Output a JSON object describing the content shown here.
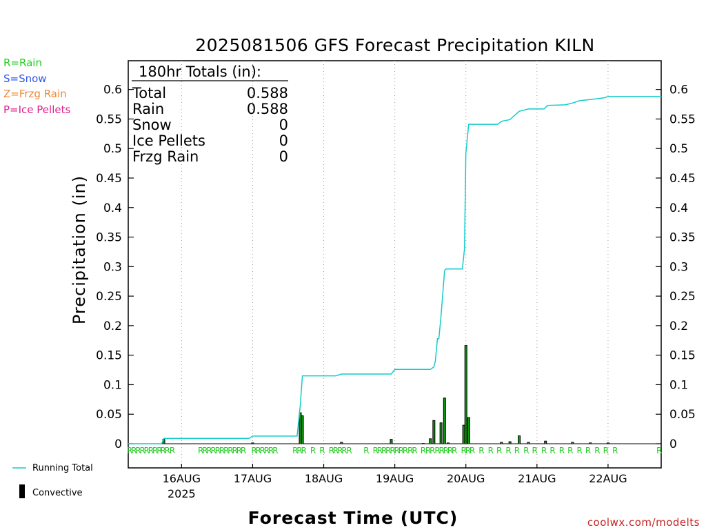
{
  "colors": {
    "rain": "#22cc22",
    "snow": "#3355ee",
    "frzg": "#ee8833",
    "ice": "#dd2288",
    "running_total": "#11cccc",
    "convective": "#000000",
    "credit": "#cc2222"
  },
  "chart_data": {
    "type": "bar",
    "title": "2025081506 GFS Forecast Precipitation KILN",
    "xlabel": "Forecast Time (UTC)",
    "ylabel": "Precipitation (in)",
    "ylim": [
      -0.0,
      0.65
    ],
    "x_units": "days since 15AUG2025 00Z",
    "xlim": [
      0.25,
      7.75
    ],
    "y_ticks": [
      {
        "value": 0,
        "label": "0"
      },
      {
        "value": 0.05,
        "label": "0.05"
      },
      {
        "value": 0.1,
        "label": "0.1"
      },
      {
        "value": 0.15,
        "label": "0.15"
      },
      {
        "value": 0.2,
        "label": "0.2"
      },
      {
        "value": 0.25,
        "label": "0.25"
      },
      {
        "value": 0.3,
        "label": "0.3"
      },
      {
        "value": 0.35,
        "label": "0.35"
      },
      {
        "value": 0.4,
        "label": "0.4"
      },
      {
        "value": 0.45,
        "label": "0.45"
      },
      {
        "value": 0.5,
        "label": "0.5"
      },
      {
        "value": 0.55,
        "label": "0.55"
      },
      {
        "value": 0.6,
        "label": "0.6"
      }
    ],
    "x_ticks": [
      {
        "value": 1,
        "label": "16AUG",
        "sublabel": "2025"
      },
      {
        "value": 2,
        "label": "17AUG",
        "sublabel": ""
      },
      {
        "value": 3,
        "label": "18AUG",
        "sublabel": ""
      },
      {
        "value": 4,
        "label": "19AUG",
        "sublabel": ""
      },
      {
        "value": 5,
        "label": "20AUG",
        "sublabel": ""
      },
      {
        "value": 6,
        "label": "21AUG",
        "sublabel": ""
      },
      {
        "value": 7,
        "label": "22AUG",
        "sublabel": ""
      }
    ],
    "grid": "vertical dotted at day boundaries",
    "series": [
      {
        "name": "Running Total",
        "kind": "line",
        "points": [
          [
            0.25,
            0
          ],
          [
            0.72,
            0
          ],
          [
            0.75,
            0.009
          ],
          [
            1.0,
            0.009
          ],
          [
            1.95,
            0.009
          ],
          [
            2.0,
            0.013
          ],
          [
            2.625,
            0.013
          ],
          [
            2.67,
            0.065
          ],
          [
            2.7,
            0.115
          ],
          [
            3.0,
            0.115
          ],
          [
            3.17,
            0.115
          ],
          [
            3.25,
            0.118
          ],
          [
            3.7,
            0.118
          ],
          [
            3.95,
            0.118
          ],
          [
            4.0,
            0.126
          ],
          [
            4.5,
            0.126
          ],
          [
            4.55,
            0.13
          ],
          [
            4.57,
            0.14
          ],
          [
            4.6,
            0.178
          ],
          [
            4.62,
            0.178
          ],
          [
            4.65,
            0.215
          ],
          [
            4.7,
            0.293
          ],
          [
            4.72,
            0.296
          ],
          [
            4.95,
            0.296
          ],
          [
            4.98,
            0.33
          ],
          [
            5.0,
            0.492
          ],
          [
            5.04,
            0.541
          ],
          [
            5.45,
            0.541
          ],
          [
            5.5,
            0.546
          ],
          [
            5.62,
            0.549
          ],
          [
            5.75,
            0.563
          ],
          [
            5.88,
            0.567
          ],
          [
            6.1,
            0.567
          ],
          [
            6.15,
            0.573
          ],
          [
            6.4,
            0.574
          ],
          [
            6.5,
            0.577
          ],
          [
            6.6,
            0.581
          ],
          [
            6.75,
            0.583
          ],
          [
            6.95,
            0.586
          ],
          [
            7.0,
            0.588
          ],
          [
            7.75,
            0.588
          ]
        ]
      },
      {
        "name": "Convective",
        "kind": "bar",
        "x": [
          0.75,
          2.0,
          2.67,
          2.7,
          3.25,
          3.95,
          4.4,
          4.5,
          4.55,
          4.65,
          4.7,
          4.75,
          4.97,
          5.0,
          5.04,
          5.5,
          5.62,
          5.75,
          5.88,
          6.12,
          6.5,
          6.75,
          7.0
        ],
        "values": [
          0.008,
          0.002,
          0.053,
          0.048,
          0.003,
          0.008,
          0.001,
          0.009,
          0.04,
          0.036,
          0.078,
          0.002,
          0.032,
          0.167,
          0.045,
          0.003,
          0.004,
          0.014,
          0.003,
          0.005,
          0.003,
          0.002,
          0.002
        ],
        "rain_markers": [
          false,
          false,
          false,
          false,
          false,
          false,
          false,
          false,
          false,
          false,
          false,
          false,
          false,
          false,
          false,
          false,
          false,
          false,
          false,
          false,
          false,
          false,
          false
        ]
      }
    ],
    "precip_type_row": {
      "label_char": "R",
      "x": [
        0.27,
        0.33,
        0.39,
        0.45,
        0.51,
        0.57,
        0.63,
        0.69,
        0.74,
        0.8,
        0.87,
        1.27,
        1.33,
        1.39,
        1.45,
        1.51,
        1.57,
        1.63,
        1.69,
        1.75,
        1.81,
        1.87,
        2.02,
        2.08,
        2.14,
        2.2,
        2.26,
        2.32,
        2.6,
        2.66,
        2.72,
        2.85,
        2.98,
        3.11,
        3.17,
        3.23,
        3.29,
        3.36,
        3.6,
        3.73,
        3.79,
        3.85,
        3.91,
        3.97,
        4.03,
        4.09,
        4.15,
        4.22,
        4.28,
        4.4,
        4.47,
        4.53,
        4.6,
        4.66,
        4.72,
        4.78,
        4.84,
        4.97,
        5.03,
        5.09,
        5.22,
        5.35,
        5.47,
        5.6,
        5.72,
        5.85,
        5.97,
        6.1,
        6.22,
        6.35,
        6.47,
        6.6,
        6.72,
        6.85,
        6.97,
        7.1,
        7.72
      ]
    }
  },
  "totals_box": {
    "header": "180hr Totals (in):",
    "rows": [
      {
        "label": "Total",
        "value": "0.588"
      },
      {
        "label": "Rain",
        "value": "0.588"
      },
      {
        "label": "Snow",
        "value": "0"
      },
      {
        "label": "Ice Pellets",
        "value": "0"
      },
      {
        "label": "Frzg Rain",
        "value": "0"
      }
    ]
  },
  "precip_legend": {
    "rain": "R=Rain",
    "snow": "S=Snow",
    "frzg": "Z=Frzg Rain",
    "ice": "P=Ice Pellets"
  },
  "series_legend": {
    "running_total": "Running Total",
    "convective": "Convective"
  },
  "credit": "coolwx.com/modelts"
}
